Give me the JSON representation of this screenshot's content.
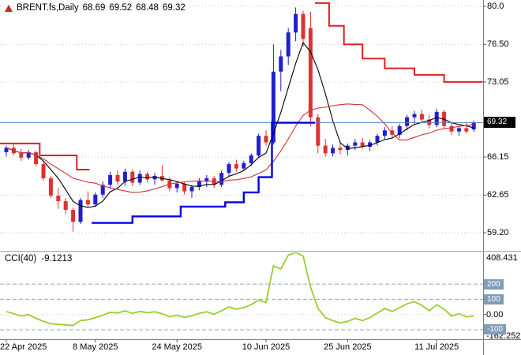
{
  "header": {
    "symbol": "BRENT.fs,Daily",
    "open": "68.69",
    "high": "69.52",
    "low": "68.48",
    "close": "69.32"
  },
  "indicator_label": {
    "name": "CCI(40)",
    "value": "-9.1213"
  },
  "price_axis": {
    "labels": [
      "80.0",
      "76.50",
      "73.05",
      "66.15",
      "62.65",
      "59.20"
    ],
    "current_badge": "69.32"
  },
  "cci_axis": {
    "max": "408.431",
    "zero": "0.00",
    "min": "-162.252",
    "level_badges": [
      "200",
      "100",
      "-100"
    ]
  },
  "date_axis": [
    {
      "label": "22 Apr 2025",
      "index": 0
    },
    {
      "label": "8 May 2025",
      "index": 12
    },
    {
      "label": "24 May 2025",
      "index": 23
    },
    {
      "label": "10 Jun 2025",
      "index": 35
    },
    {
      "label": "25 Jun 2025",
      "index": 46
    },
    {
      "label": "11 Jul 2025",
      "index": 58
    }
  ],
  "colors": {
    "bull": "#2020cc",
    "bear": "#dd3232",
    "trend_up": "#0000e0",
    "trend_down": "#e02020",
    "cci_line": "#9acd32",
    "price_line": "#5b7fc4",
    "badge_bg": "#000000",
    "cci_badge_bg": "#7f9db9",
    "marker": "#c22a1e"
  },
  "chart_data": {
    "type": "candlestick",
    "title": "BRENT.fs,Daily",
    "current_price": 69.32,
    "price_axis_range": [
      57.5,
      80.6
    ],
    "ohlc": [
      [
        66.6,
        67.2,
        66.2,
        67.0
      ],
      [
        67.0,
        67.4,
        66.3,
        66.5
      ],
      [
        66.5,
        66.9,
        65.8,
        66.1
      ],
      [
        66.1,
        66.8,
        65.9,
        66.6
      ],
      [
        66.6,
        66.7,
        65.3,
        65.5
      ],
      [
        65.5,
        65.7,
        64.0,
        64.2
      ],
      [
        64.2,
        64.4,
        62.4,
        62.6
      ],
      [
        62.6,
        63.3,
        61.4,
        62.1
      ],
      [
        62.1,
        62.4,
        60.9,
        61.3
      ],
      [
        61.3,
        61.5,
        59.3,
        60.2
      ],
      [
        60.2,
        62.4,
        60.0,
        62.2
      ],
      [
        62.2,
        63.0,
        61.5,
        61.8
      ],
      [
        61.8,
        62.9,
        61.6,
        62.7
      ],
      [
        62.7,
        63.9,
        62.4,
        63.6
      ],
      [
        63.6,
        64.8,
        63.2,
        64.5
      ],
      [
        64.5,
        64.9,
        63.6,
        63.9
      ],
      [
        63.9,
        65.1,
        63.5,
        64.8
      ],
      [
        64.8,
        65.0,
        63.5,
        63.8
      ],
      [
        63.8,
        64.9,
        63.6,
        64.6
      ],
      [
        64.6,
        64.8,
        63.8,
        64.1
      ],
      [
        64.1,
        64.7,
        63.6,
        64.4
      ],
      [
        64.4,
        65.4,
        63.9,
        64.0
      ],
      [
        64.0,
        64.3,
        63.0,
        63.3
      ],
      [
        63.3,
        63.9,
        62.9,
        63.7
      ],
      [
        63.7,
        63.9,
        62.7,
        63.0
      ],
      [
        63.0,
        63.6,
        62.4,
        63.4
      ],
      [
        63.4,
        64.2,
        63.1,
        63.9
      ],
      [
        63.9,
        64.5,
        63.4,
        64.2
      ],
      [
        64.2,
        64.4,
        63.3,
        63.6
      ],
      [
        63.6,
        64.9,
        63.4,
        64.7
      ],
      [
        64.7,
        65.7,
        64.4,
        65.5
      ],
      [
        65.5,
        65.9,
        64.8,
        65.1
      ],
      [
        65.1,
        65.8,
        64.9,
        65.6
      ],
      [
        65.6,
        66.5,
        65.3,
        66.3
      ],
      [
        66.3,
        68.3,
        66.1,
        68.1
      ],
      [
        68.1,
        68.6,
        67.2,
        67.5
      ],
      [
        67.5,
        76.5,
        67.3,
        74.0
      ],
      [
        74.0,
        76.0,
        72.2,
        75.4
      ],
      [
        75.4,
        78.0,
        74.6,
        77.6
      ],
      [
        77.6,
        79.9,
        76.8,
        79.3
      ],
      [
        79.3,
        79.6,
        76.3,
        77.0
      ],
      [
        78.0,
        79.5,
        69.0,
        69.8
      ],
      [
        69.8,
        70.1,
        66.5,
        67.2
      ],
      [
        67.2,
        67.8,
        66.2,
        66.5
      ],
      [
        66.5,
        67.3,
        66.2,
        67.0
      ],
      [
        67.0,
        67.6,
        66.4,
        66.8
      ],
      [
        66.8,
        67.4,
        66.3,
        67.2
      ],
      [
        67.2,
        67.8,
        66.8,
        67.5
      ],
      [
        67.5,
        67.9,
        66.9,
        67.1
      ],
      [
        67.1,
        67.7,
        66.7,
        67.5
      ],
      [
        67.5,
        68.3,
        67.2,
        68.1
      ],
      [
        68.1,
        68.9,
        67.8,
        68.6
      ],
      [
        68.6,
        69.0,
        67.9,
        68.2
      ],
      [
        68.2,
        69.2,
        67.9,
        69.0
      ],
      [
        69.0,
        70.0,
        68.6,
        69.8
      ],
      [
        69.8,
        70.4,
        69.2,
        70.1
      ],
      [
        70.1,
        70.5,
        69.3,
        69.6
      ],
      [
        69.6,
        70.0,
        68.8,
        69.1
      ],
      [
        69.1,
        70.6,
        68.9,
        70.3
      ],
      [
        70.3,
        70.5,
        68.8,
        69.0
      ],
      [
        69.0,
        69.3,
        68.2,
        68.5
      ],
      [
        68.5,
        69.0,
        68.1,
        68.8
      ],
      [
        68.8,
        69.3,
        68.3,
        68.5
      ],
      [
        68.69,
        69.52,
        68.48,
        69.32
      ]
    ],
    "moving_averages": [
      {
        "name": "fast",
        "period": 5,
        "color": "#000000"
      },
      {
        "name": "slow",
        "period": 13,
        "color": "#cc3333"
      }
    ],
    "trend": {
      "down_left": [
        {
          "from": -0.9,
          "to": 4.5,
          "price": 67.4
        },
        {
          "from": 4.5,
          "to": 9.5,
          "price": 66.3
        },
        {
          "from": 9.5,
          "to": 11.2,
          "price": 65.0
        }
      ],
      "up": [
        {
          "from": 11.5,
          "to": 17,
          "price": 60.1
        },
        {
          "from": 17,
          "to": 23.5,
          "price": 60.7
        },
        {
          "from": 23.5,
          "to": 29.5,
          "price": 61.6
        },
        {
          "from": 29.5,
          "to": 32,
          "price": 62.0
        },
        {
          "from": 32,
          "to": 34,
          "price": 62.9
        },
        {
          "from": 34,
          "to": 35.8,
          "price": 64.3
        },
        {
          "from": 35.8,
          "to": 41.6,
          "price": 69.3
        }
      ],
      "down_right": [
        {
          "from": 41.6,
          "to": 43.5,
          "price": 80.3
        },
        {
          "from": 43.5,
          "to": 45.5,
          "price": 78.2
        },
        {
          "from": 45.5,
          "to": 48,
          "price": 76.5
        },
        {
          "from": 48,
          "to": 51,
          "price": 75.2
        },
        {
          "from": 51,
          "to": 55,
          "price": 74.3
        },
        {
          "from": 55,
          "to": 59,
          "price": 73.7
        },
        {
          "from": 59,
          "to": 64.2,
          "price": 73.05
        }
      ]
    },
    "cci": {
      "period": 40,
      "last_value": -9.1213,
      "range": [
        -162.252,
        408.431
      ],
      "levels": [
        200,
        100,
        -100
      ],
      "level_color": "#8fa8c8",
      "values": [
        20,
        5,
        -10,
        0,
        -25,
        -45,
        -60,
        -65,
        -68,
        -72,
        -40,
        -35,
        -20,
        -5,
        15,
        10,
        25,
        8,
        20,
        12,
        18,
        5,
        -15,
        -5,
        -18,
        -8,
        8,
        18,
        2,
        25,
        50,
        35,
        45,
        65,
        95,
        80,
        320,
        300,
        390,
        408.43,
        385,
        180,
        40,
        -20,
        -40,
        -55,
        -45,
        -25,
        -40,
        -20,
        10,
        40,
        20,
        45,
        70,
        85,
        60,
        25,
        65,
        35,
        -10,
        5,
        -15,
        -9.1213
      ]
    }
  }
}
